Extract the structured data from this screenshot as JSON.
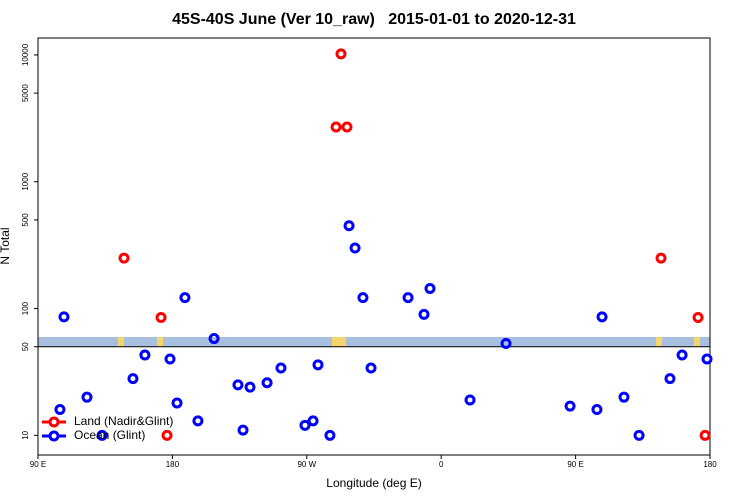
{
  "chart_data": {
    "type": "scatter",
    "title": "45S-40S June (Ver 10_raw)   2015-01-01 to 2020-12-31",
    "x_label": "Longitude (deg E)",
    "y_label": "N Total",
    "log_y": true,
    "legend": "lower left",
    "xlim": [
      90,
      540
    ],
    "xticks": [
      {
        "value": 90,
        "label": "90 E"
      },
      180,
      {
        "value": 270,
        "label": "90 W"
      },
      {
        "value": 360,
        "label": "0"
      },
      {
        "value": 450,
        "label": "90 E"
      },
      {
        "value": 540,
        "label": "180"
      }
    ],
    "ylim": [
      7,
      13600
    ],
    "yticks": [
      10,
      50,
      100,
      500,
      1000,
      5000,
      10000
    ],
    "series": [
      {
        "name": "Land (Nadir&Glint)",
        "color": "#ff0000",
        "x": [
          147.6,
          172.4,
          176.4,
          292.9,
          289.6,
          296.9,
          507.2,
          532,
          536.7
        ],
        "values": [
          250,
          85,
          10,
          10200,
          2700,
          2700,
          250,
          85,
          10
        ]
      },
      {
        "name": "Ocean (Glint)",
        "color": "#0000ff",
        "x": [
          107.4,
          104.7,
          122.8,
          132.9,
          153.6,
          161.6,
          178.4,
          183.1,
          188.4,
          197.1,
          207.9,
          223.9,
          227.3,
          232,
          243.4,
          252.7,
          268.8,
          274.2,
          277.5,
          285.5,
          298.3,
          302.3,
          307.6,
          313,
          337.8,
          348.5,
          352.5,
          379.3,
          403.4,
          446.3,
          464.3,
          467.7,
          482.4,
          492.5,
          513.2,
          521.3,
          538
        ],
        "values": [
          86,
          16,
          20,
          10,
          28,
          43,
          40,
          18,
          122,
          13,
          58,
          25,
          11,
          24,
          26,
          34,
          12,
          13,
          36,
          10,
          450,
          300,
          122,
          34,
          122,
          90,
          144,
          19,
          53,
          17,
          16,
          86,
          20,
          10,
          28,
          43,
          40
        ]
      }
    ]
  }
}
